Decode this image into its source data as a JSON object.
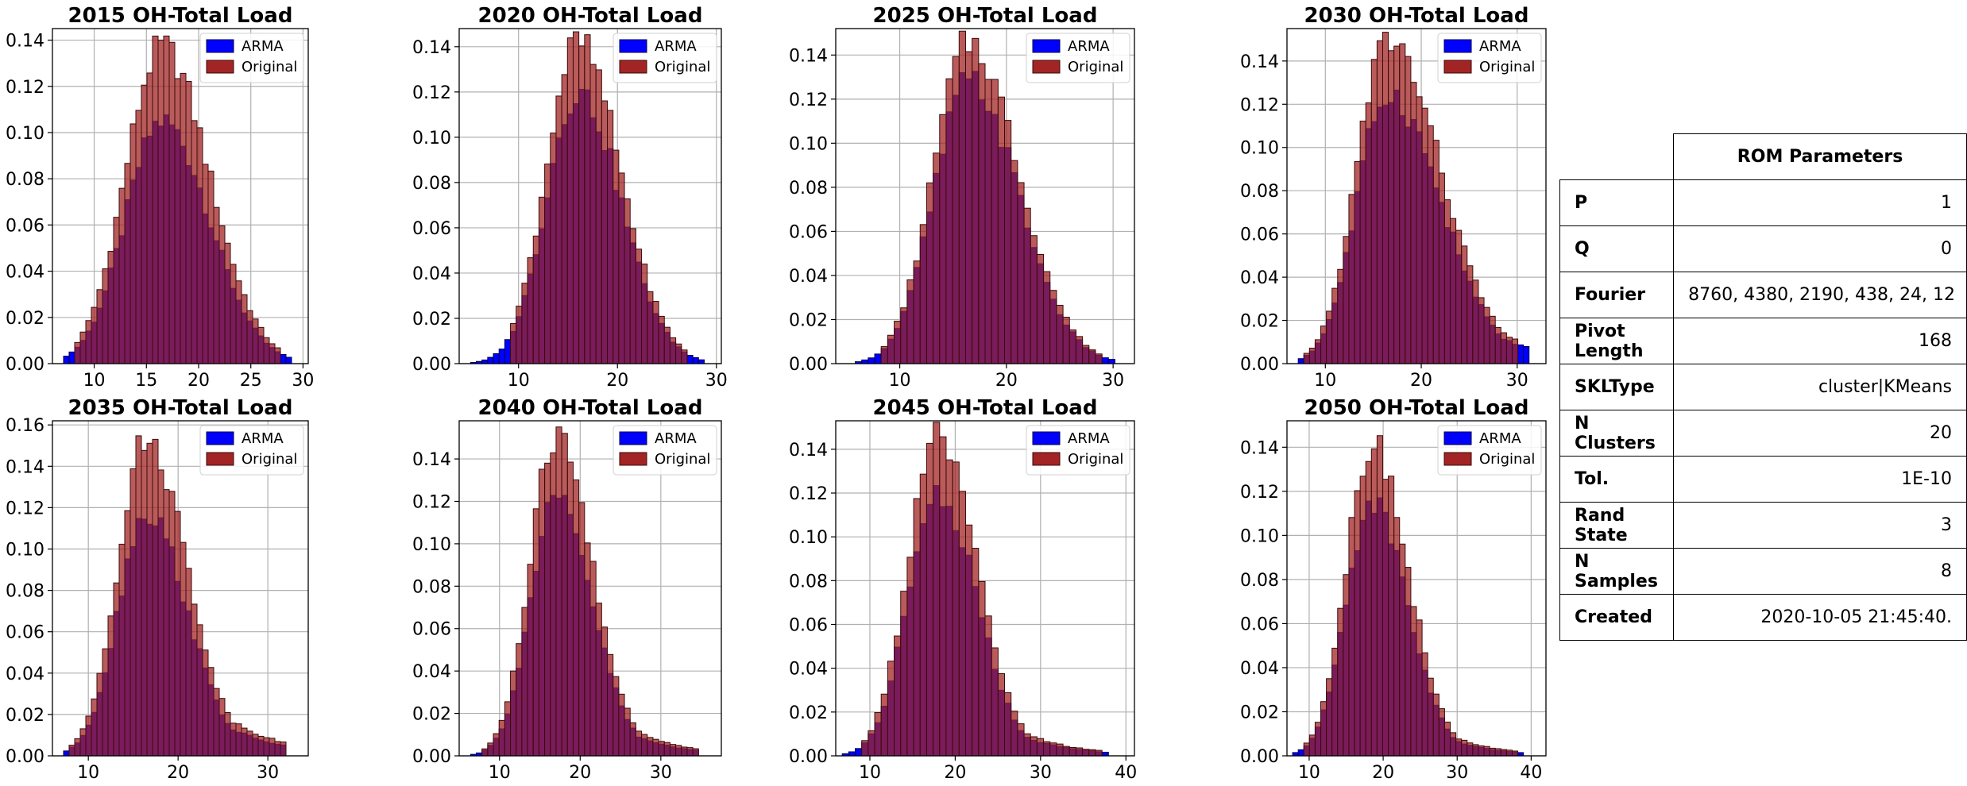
{
  "chart_data": [
    {
      "type": "bar",
      "title": "2015 OH-Total Load",
      "xlim": [
        6,
        30.5
      ],
      "ylim": [
        0,
        0.145
      ],
      "xticks": [
        10,
        15,
        20,
        25,
        30
      ],
      "yticks": [
        0,
        0.02,
        0.04,
        0.06,
        0.08,
        0.1,
        0.12,
        0.14
      ],
      "grid": true,
      "legend": "top-right",
      "series": [
        {
          "name": "ARMA",
          "color": "#0000ff",
          "mode": 0.105,
          "spread": 0.95,
          "x_range": [
            7,
            29
          ]
        },
        {
          "name": "Original",
          "color": "#a32424",
          "mode": 0.137,
          "spread": 0.9,
          "x_range": [
            8,
            28
          ]
        }
      ],
      "peak_x": 16.5,
      "sigma_left": 3.5,
      "sigma_right": 4.5,
      "tail": 0
    },
    {
      "type": "bar",
      "title": "2020 OH-Total Load",
      "xlim": [
        4,
        30.5
      ],
      "ylim": [
        0,
        0.148
      ],
      "xticks": [
        10,
        20,
        30
      ],
      "yticks": [
        0,
        0.02,
        0.04,
        0.06,
        0.08,
        0.1,
        0.12,
        0.14
      ],
      "grid": true,
      "legend": "top-right",
      "series": [
        {
          "name": "ARMA",
          "color": "#0000ff",
          "mode": 0.12,
          "spread": 0.95,
          "x_range": [
            5,
            29
          ]
        },
        {
          "name": "Original",
          "color": "#a32424",
          "mode": 0.142,
          "spread": 0.9,
          "x_range": [
            9,
            27
          ]
        }
      ],
      "peak_x": 16,
      "sigma_left": 3.2,
      "sigma_right": 4.3,
      "tail": 0
    },
    {
      "type": "bar",
      "title": "2025 OH-Total Load",
      "xlim": [
        4,
        32
      ],
      "ylim": [
        0,
        0.152
      ],
      "xticks": [
        10,
        20,
        30
      ],
      "yticks": [
        0,
        0.02,
        0.04,
        0.06,
        0.08,
        0.1,
        0.12,
        0.14
      ],
      "grid": true,
      "legend": "top-right",
      "series": [
        {
          "name": "ARMA",
          "color": "#0000ff",
          "mode": 0.128,
          "spread": 0.95,
          "x_range": [
            5,
            30
          ]
        },
        {
          "name": "Original",
          "color": "#a32424",
          "mode": 0.146,
          "spread": 0.9,
          "x_range": [
            8,
            29
          ]
        }
      ],
      "peak_x": 16.5,
      "sigma_left": 3.3,
      "sigma_right": 4.6,
      "tail": 0
    },
    {
      "type": "bar",
      "title": "2030 OH-Total Load",
      "xlim": [
        6,
        33
      ],
      "ylim": [
        0,
        0.155
      ],
      "xticks": [
        10,
        20,
        30
      ],
      "yticks": [
        0,
        0.02,
        0.04,
        0.06,
        0.08,
        0.1,
        0.12,
        0.14
      ],
      "grid": true,
      "legend": "top-right",
      "series": [
        {
          "name": "ARMA",
          "color": "#0000ff",
          "mode": 0.125,
          "spread": 0.95,
          "x_range": [
            7,
            31
          ]
        },
        {
          "name": "Original",
          "color": "#a32424",
          "mode": 0.15,
          "spread": 0.9,
          "x_range": [
            8,
            30
          ]
        }
      ],
      "peak_x": 16.5,
      "sigma_left": 3.2,
      "sigma_right": 5.5,
      "tail": 0.25
    },
    {
      "type": "bar",
      "title": "2035 OH-Total Load",
      "xlim": [
        6,
        34.5
      ],
      "ylim": [
        0,
        0.162
      ],
      "xticks": [
        10,
        20,
        30
      ],
      "yticks": [
        0,
        0.02,
        0.04,
        0.06,
        0.08,
        0.1,
        0.12,
        0.14,
        0.16
      ],
      "grid": true,
      "legend": "top-right",
      "series": [
        {
          "name": "ARMA",
          "color": "#0000ff",
          "mode": 0.118,
          "spread": 0.95,
          "x_range": [
            7,
            32
          ]
        },
        {
          "name": "Original",
          "color": "#a32424",
          "mode": 0.153,
          "spread": 0.9,
          "x_range": [
            8,
            32
          ]
        }
      ],
      "peak_x": 16.5,
      "sigma_left": 3.2,
      "sigma_right": 4.5,
      "tail": 0.2
    },
    {
      "type": "bar",
      "title": "2040 OH-Total Load",
      "xlim": [
        5,
        37.5
      ],
      "ylim": [
        0,
        0.158
      ],
      "xticks": [
        10,
        20,
        30
      ],
      "yticks": [
        0,
        0.02,
        0.04,
        0.06,
        0.08,
        0.1,
        0.12,
        0.14
      ],
      "grid": true,
      "legend": "top-right",
      "series": [
        {
          "name": "ARMA",
          "color": "#0000ff",
          "mode": 0.12,
          "spread": 0.95,
          "x_range": [
            6,
            35
          ]
        },
        {
          "name": "Original",
          "color": "#a32424",
          "mode": 0.15,
          "spread": 0.9,
          "x_range": [
            8,
            35
          ]
        }
      ],
      "peak_x": 17,
      "sigma_left": 3.2,
      "sigma_right": 4.5,
      "tail": 0.15
    },
    {
      "type": "bar",
      "title": "2045 OH-Total Load",
      "xlim": [
        6,
        41
      ],
      "ylim": [
        0,
        0.153
      ],
      "xticks": [
        10,
        20,
        30,
        40
      ],
      "yticks": [
        0,
        0.02,
        0.04,
        0.06,
        0.08,
        0.1,
        0.12,
        0.14
      ],
      "grid": true,
      "legend": "top-right",
      "series": [
        {
          "name": "ARMA",
          "color": "#0000ff",
          "mode": 0.12,
          "spread": 0.95,
          "x_range": [
            7,
            38
          ]
        },
        {
          "name": "Original",
          "color": "#a32424",
          "mode": 0.145,
          "spread": 0.9,
          "x_range": [
            9,
            37
          ]
        }
      ],
      "peak_x": 18,
      "sigma_left": 3.5,
      "sigma_right": 4.5,
      "tail": 0.14
    },
    {
      "type": "bar",
      "title": "2050 OH-Total Load",
      "xlim": [
        7,
        42
      ],
      "ylim": [
        0,
        0.152
      ],
      "xticks": [
        10,
        20,
        30,
        40
      ],
      "yticks": [
        0,
        0.02,
        0.04,
        0.06,
        0.08,
        0.1,
        0.12,
        0.14
      ],
      "grid": true,
      "legend": "top-right",
      "series": [
        {
          "name": "ARMA",
          "color": "#0000ff",
          "mode": 0.115,
          "spread": 0.95,
          "x_range": [
            8,
            39
          ]
        },
        {
          "name": "Original",
          "color": "#a32424",
          "mode": 0.142,
          "spread": 0.9,
          "x_range": [
            9,
            38
          ]
        }
      ],
      "peak_x": 18.5,
      "sigma_left": 3.5,
      "sigma_right": 4.8,
      "tail": 0.14
    }
  ],
  "table": {
    "header": "ROM Parameters",
    "rows": [
      {
        "label": "P",
        "value": "1"
      },
      {
        "label": "Q",
        "value": "0"
      },
      {
        "label": "Fourier",
        "value": "8760, 4380, 2190, 438, 24, 12"
      },
      {
        "label": "Pivot Length",
        "value": "168"
      },
      {
        "label": "SKLType",
        "value": "cluster|KMeans"
      },
      {
        "label": "N Clusters",
        "value": "20"
      },
      {
        "label": "Tol.",
        "value": "1E-10"
      },
      {
        "label": "Rand State",
        "value": "3"
      },
      {
        "label": "N Samples",
        "value": "8"
      },
      {
        "label": "Created",
        "value": "2020-10-05 21:45:40."
      }
    ]
  }
}
